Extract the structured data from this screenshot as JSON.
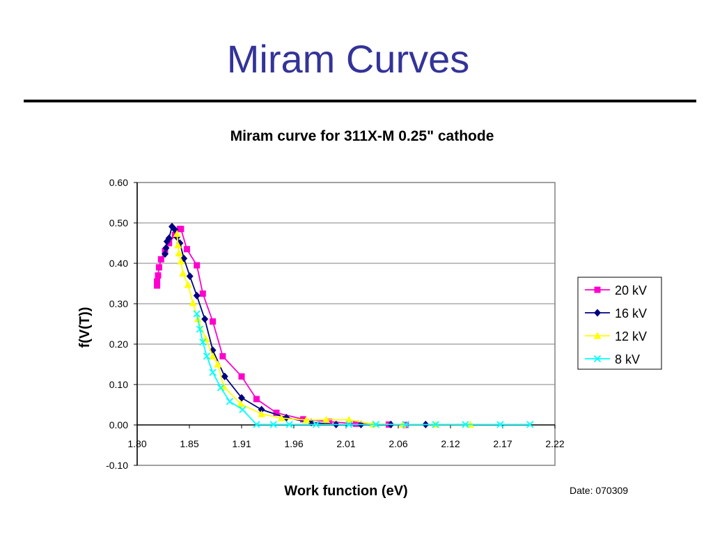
{
  "slide": {
    "title": "Miram Curves",
    "date": "Date: 070309"
  },
  "chart_data": {
    "type": "line",
    "title": "Miram curve for 311X-M 0.25\" cathode",
    "xlabel": "Work function (eV)",
    "ylabel": "f(V(T))",
    "xlim": [
      1.8,
      2.22
    ],
    "ylim": [
      -0.1,
      0.6
    ],
    "x_ticks": [
      "1.80",
      "1.85",
      "1.91",
      "1.96",
      "2.01",
      "2.06",
      "2.12",
      "2.17",
      "2.22"
    ],
    "y_ticks": [
      "-0.10",
      "0.00",
      "0.10",
      "0.20",
      "0.30",
      "0.40",
      "0.50",
      "0.60"
    ],
    "grid": "horizontal",
    "legend_position": "right",
    "series": [
      {
        "name": "20 kV",
        "color": "#ff00cc",
        "marker": "square",
        "points": [
          [
            1.82,
            0.345
          ],
          [
            1.82,
            0.355
          ],
          [
            1.821,
            0.37
          ],
          [
            1.822,
            0.39
          ],
          [
            1.824,
            0.41
          ],
          [
            1.828,
            0.43
          ],
          [
            1.832,
            0.45
          ],
          [
            1.838,
            0.47
          ],
          [
            1.843,
            0.485
          ],
          [
            1.844,
            0.485
          ],
          [
            1.85,
            0.435
          ],
          [
            1.86,
            0.395
          ],
          [
            1.866,
            0.325
          ],
          [
            1.876,
            0.256
          ],
          [
            1.886,
            0.17
          ],
          [
            1.905,
            0.12
          ],
          [
            1.92,
            0.064
          ],
          [
            1.94,
            0.03
          ],
          [
            1.967,
            0.014
          ],
          [
            1.993,
            0.008
          ],
          [
            2.02,
            0.003
          ],
          [
            2.053,
            0.001
          ],
          [
            2.07,
            0.0
          ]
        ]
      },
      {
        "name": "16 kV",
        "color": "#000080",
        "marker": "diamond",
        "points": [
          [
            1.828,
            0.423
          ],
          [
            1.829,
            0.438
          ],
          [
            1.83,
            0.454
          ],
          [
            1.832,
            0.462
          ],
          [
            1.835,
            0.491
          ],
          [
            1.838,
            0.483
          ],
          [
            1.84,
            0.465
          ],
          [
            1.843,
            0.45
          ],
          [
            1.847,
            0.412
          ],
          [
            1.853,
            0.368
          ],
          [
            1.86,
            0.32
          ],
          [
            1.868,
            0.262
          ],
          [
            1.876,
            0.185
          ],
          [
            1.888,
            0.12
          ],
          [
            1.905,
            0.067
          ],
          [
            1.925,
            0.038
          ],
          [
            1.95,
            0.018
          ],
          [
            1.975,
            0.006
          ],
          [
            2.0,
            0.001
          ],
          [
            2.025,
            0.001
          ],
          [
            2.055,
            0.001
          ],
          [
            2.09,
            0.001
          ]
        ]
      },
      {
        "name": "12 kV",
        "color": "#ffff00",
        "marker": "triangle",
        "points": [
          [
            1.84,
            0.473
          ],
          [
            1.841,
            0.445
          ],
          [
            1.842,
            0.425
          ],
          [
            1.844,
            0.405
          ],
          [
            1.846,
            0.375
          ],
          [
            1.851,
            0.347
          ],
          [
            1.856,
            0.302
          ],
          [
            1.861,
            0.262
          ],
          [
            1.869,
            0.213
          ],
          [
            1.876,
            0.17
          ],
          [
            1.881,
            0.15
          ],
          [
            1.887,
            0.095
          ],
          [
            1.904,
            0.052
          ],
          [
            1.925,
            0.027
          ],
          [
            1.945,
            0.017
          ],
          [
            1.97,
            0.012
          ],
          [
            1.99,
            0.013
          ],
          [
            2.013,
            0.013
          ],
          [
            2.037,
            0.002
          ],
          [
            2.067,
            0.001
          ],
          [
            2.1,
            0.001
          ],
          [
            2.135,
            0.001
          ]
        ]
      },
      {
        "name": "8 kV",
        "color": "#00ffff",
        "marker": "x",
        "points": [
          [
            1.86,
            0.275
          ],
          [
            1.863,
            0.237
          ],
          [
            1.866,
            0.205
          ],
          [
            1.87,
            0.17
          ],
          [
            1.876,
            0.13
          ],
          [
            1.884,
            0.092
          ],
          [
            1.893,
            0.058
          ],
          [
            1.906,
            0.038
          ],
          [
            1.92,
            0.001
          ],
          [
            1.937,
            0.001
          ],
          [
            1.953,
            0.001
          ],
          [
            1.98,
            0.001
          ],
          [
            2.013,
            0.001
          ],
          [
            2.04,
            0.001
          ],
          [
            2.07,
            0.001
          ],
          [
            2.1,
            0.001
          ],
          [
            2.13,
            0.001
          ],
          [
            2.165,
            0.001
          ],
          [
            2.195,
            0.001
          ]
        ]
      }
    ]
  }
}
